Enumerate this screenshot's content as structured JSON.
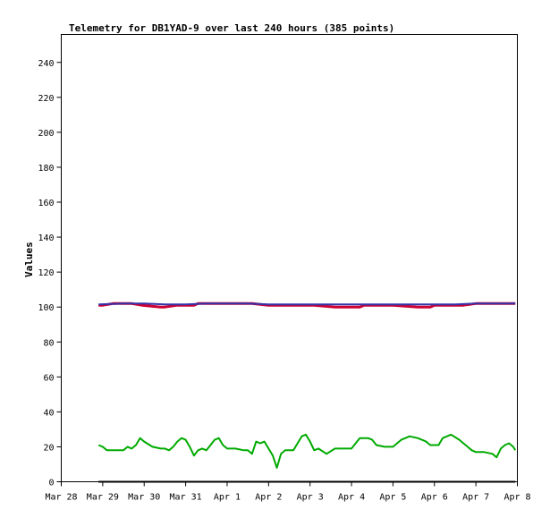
{
  "chart_data": {
    "type": "line",
    "title": "Telemetry for DB1YAD-9 over last 240 hours (385 points)",
    "xlabel": "",
    "ylabel": "Values",
    "ylim": [
      0,
      256
    ],
    "xlim": [
      "Mar 28",
      "Apr 8"
    ],
    "x_ticks": [
      "Mar 28",
      "Mar 29",
      "Mar 30",
      "Mar 31",
      "Apr 1",
      "Apr 2",
      "Apr 3",
      "Apr 4",
      "Apr 5",
      "Apr 6",
      "Apr 7",
      "Apr 8"
    ],
    "y_ticks": [
      0,
      20,
      40,
      60,
      80,
      100,
      120,
      140,
      160,
      180,
      200,
      220,
      240
    ],
    "grid": false,
    "legend": "none",
    "series": [
      {
        "color": "#cc0033",
        "x": [
          0.9,
          1.0,
          1.25,
          1.3,
          1.5,
          1.7,
          1.95,
          2.4,
          2.5,
          2.8,
          3.2,
          3.3,
          3.5,
          4.0,
          4.6,
          5.0,
          5.3,
          5.6,
          5.7,
          6.1,
          6.6,
          6.7,
          7.2,
          7.3,
          7.6,
          8.0,
          8.6,
          8.9,
          9.0,
          9.2,
          9.7,
          10.0,
          10.4,
          10.95
        ],
        "y": [
          101,
          101,
          102,
          102,
          102,
          102,
          101,
          100,
          100,
          101,
          101,
          102,
          102,
          102,
          102,
          101,
          101,
          101,
          101,
          101,
          100,
          100,
          100,
          101,
          101,
          101,
          100,
          100,
          101,
          101,
          101,
          102,
          102,
          102
        ]
      },
      {
        "color": "#3333aa",
        "x": [
          0.9,
          1.5,
          2.0,
          2.5,
          3.0,
          3.5,
          4.0,
          4.5,
          5.0,
          5.5,
          6.0,
          6.5,
          7.0,
          7.5,
          8.0,
          8.5,
          9.0,
          9.5,
          10.0,
          10.5,
          10.95
        ],
        "y": [
          101.5,
          102,
          102,
          101.5,
          101.5,
          102,
          102,
          102,
          101.5,
          101.5,
          101.5,
          101.5,
          101.5,
          101.5,
          101.5,
          101.5,
          101.5,
          101.5,
          102,
          102,
          102
        ]
      },
      {
        "color": "#00aa00",
        "x": [
          0.9,
          1.0,
          1.1,
          1.3,
          1.5,
          1.6,
          1.7,
          1.8,
          1.9,
          2.0,
          2.2,
          2.4,
          2.5,
          2.6,
          2.7,
          2.8,
          2.9,
          3.0,
          3.1,
          3.2,
          3.3,
          3.4,
          3.5,
          3.6,
          3.7,
          3.8,
          3.9,
          4.0,
          4.2,
          4.4,
          4.5,
          4.6,
          4.7,
          4.8,
          4.9,
          5.0,
          5.1,
          5.2,
          5.3,
          5.4,
          5.5,
          5.6,
          5.8,
          5.9,
          6.0,
          6.1,
          6.2,
          6.4,
          6.6,
          6.8,
          7.0,
          7.2,
          7.4,
          7.5,
          7.6,
          7.8,
          8.0,
          8.2,
          8.4,
          8.6,
          8.8,
          8.9,
          9.0,
          9.1,
          9.2,
          9.4,
          9.6,
          9.7,
          9.8,
          9.9,
          10.0,
          10.2,
          10.4,
          10.5,
          10.6,
          10.7,
          10.8,
          10.9,
          10.95
        ],
        "y": [
          21,
          20,
          18,
          18,
          18,
          20,
          19,
          21,
          25,
          23,
          20,
          19,
          19,
          18,
          20,
          23,
          25,
          24,
          20,
          15,
          18,
          19,
          18,
          21,
          24,
          25,
          21,
          19,
          19,
          18,
          18,
          16,
          23,
          22,
          23,
          19,
          15,
          8,
          16,
          18,
          18,
          18,
          26,
          27,
          23,
          18,
          19,
          16,
          19,
          19,
          19,
          25,
          25,
          24,
          21,
          20,
          20,
          24,
          26,
          25,
          23,
          21,
          21,
          21,
          25,
          27,
          24,
          22,
          20,
          18,
          17,
          17,
          16,
          14,
          19,
          21,
          22,
          20,
          18
        ]
      },
      {
        "color": "#000000",
        "x": [
          0.9,
          10.95
        ],
        "y": [
          0,
          0
        ]
      }
    ]
  }
}
